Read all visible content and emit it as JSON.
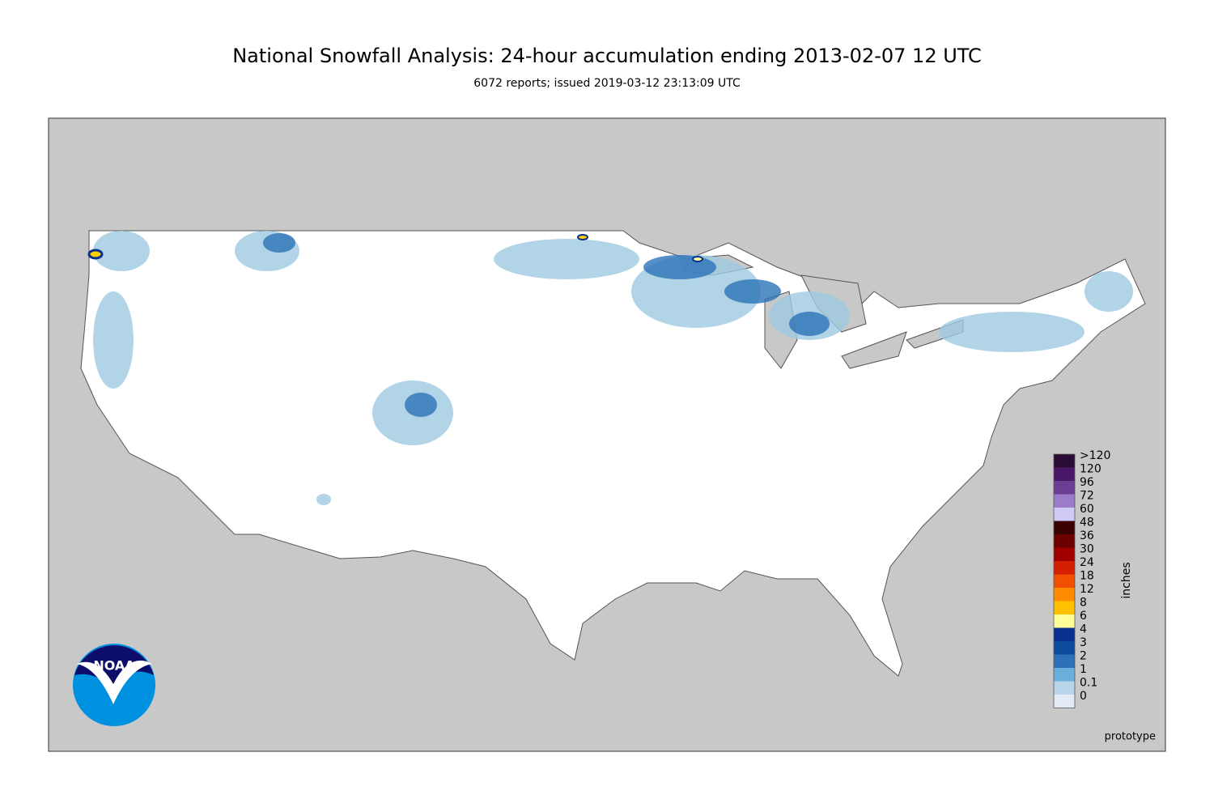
{
  "header": {
    "title": "National Snowfall Analysis: 24-hour accumulation ending 2013-02-07 12 UTC",
    "subtitle": "6072 reports; issued 2019-03-12 23:13:09 UTC"
  },
  "legend": {
    "unit": "inches",
    "items": [
      {
        "label": ">120",
        "color": "#2a0b36"
      },
      {
        "label": "120",
        "color": "#4a1866"
      },
      {
        "label": "96",
        "color": "#6b3d93"
      },
      {
        "label": "72",
        "color": "#9a7cc9"
      },
      {
        "label": "60",
        "color": "#cfcbf6"
      },
      {
        "label": "48",
        "color": "#3b0000"
      },
      {
        "label": "36",
        "color": "#6b0000"
      },
      {
        "label": "30",
        "color": "#a00000"
      },
      {
        "label": "24",
        "color": "#d42000"
      },
      {
        "label": "18",
        "color": "#f05000"
      },
      {
        "label": "12",
        "color": "#ff8c00"
      },
      {
        "label": "8",
        "color": "#ffc000"
      },
      {
        "label": "6",
        "color": "#ffff99"
      },
      {
        "label": "4",
        "color": "#08308c"
      },
      {
        "label": "3",
        "color": "#0b4c9e"
      },
      {
        "label": "2",
        "color": "#2c72b8"
      },
      {
        "label": "1",
        "color": "#6aaedb"
      },
      {
        "label": "0.1",
        "color": "#bad5ea"
      },
      {
        "label": "0",
        "color": "#e3ecf6"
      }
    ]
  },
  "logo": {
    "text": "NOAA"
  },
  "footer": {
    "note": "prototype"
  }
}
